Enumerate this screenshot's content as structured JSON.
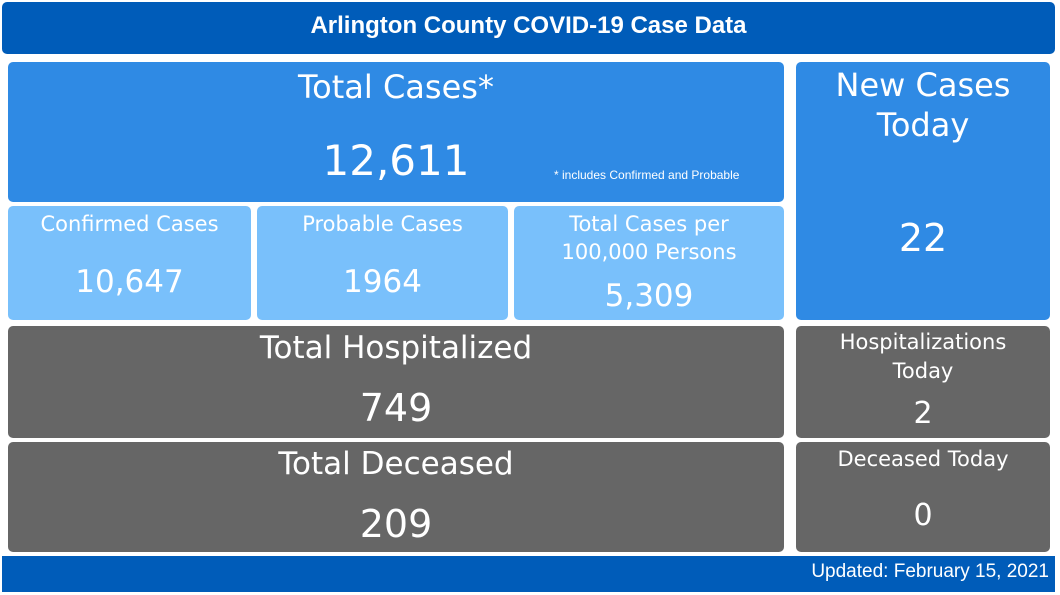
{
  "header": {
    "title": "Arlington County COVID-19 Case Data"
  },
  "total_cases": {
    "label": "Total Cases*",
    "value": "12,611",
    "note": "* includes Confirmed and Probable"
  },
  "confirmed": {
    "label": "Confirmed Cases",
    "value": "10,647"
  },
  "probable": {
    "label": "Probable Cases",
    "value": "1964"
  },
  "per_100k": {
    "label_line1": "Total Cases per",
    "label_line2": "100,000 Persons",
    "value": "5,309"
  },
  "new_cases": {
    "label_line1": "New Cases",
    "label_line2": "Today",
    "value": "22"
  },
  "hospitalized": {
    "label": "Total Hospitalized",
    "value": "749"
  },
  "hosp_today": {
    "label_line1": "Hospitalizations",
    "label_line2": "Today",
    "value": "2"
  },
  "deceased": {
    "label": "Total Deceased",
    "value": "209"
  },
  "deceased_today": {
    "label": "Deceased Today",
    "value": "0"
  },
  "footer": {
    "updated": "Updated: February 15, 2021"
  },
  "colors": {
    "header": "#005cb9",
    "cases": "#2f8ae4",
    "sub_cases": "#79c0fb",
    "outcomes": "#666666"
  }
}
